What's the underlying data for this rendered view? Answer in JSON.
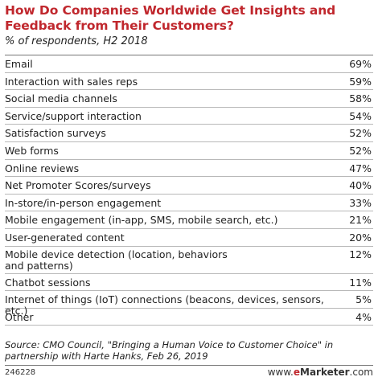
{
  "chart_data": {
    "type": "table",
    "title": "How Do Companies Worldwide Get Insights and Feedback from Their Customers?",
    "subtitle": "% of respondents, H2 2018",
    "rows": [
      {
        "label": "Email",
        "value": "69%"
      },
      {
        "label": "Interaction with sales reps",
        "value": "59%"
      },
      {
        "label": "Social media channels",
        "value": "58%"
      },
      {
        "label": "Service/support interaction",
        "value": "54%"
      },
      {
        "label": "Satisfaction surveys",
        "value": "52%"
      },
      {
        "label": "Web forms",
        "value": "52%"
      },
      {
        "label": "Online reviews",
        "value": "47%"
      },
      {
        "label": "Net Promoter Scores/surveys",
        "value": "40%"
      },
      {
        "label": "In-store/in-person engagement",
        "value": "33%"
      },
      {
        "label": "Mobile engagement (in-app, SMS, mobile search, etc.)",
        "value": "21%"
      },
      {
        "label": "User-generated content",
        "value": "20%"
      },
      {
        "label": "Mobile device detection (location, behaviors and patterns)",
        "value": "12%"
      },
      {
        "label": "Chatbot sessions",
        "value": "11%"
      },
      {
        "label": "Internet of things (IoT) connections (beacons, devices, sensors, etc.)",
        "value": "5%"
      },
      {
        "label": "Other",
        "value": "4%"
      }
    ],
    "values": [
      69,
      59,
      58,
      54,
      52,
      52,
      47,
      40,
      33,
      21,
      20,
      12,
      11,
      5,
      4
    ]
  },
  "source": "Source: CMO Council, \"Bringing a Human Voice to Customer Choice\" in partnership with Harte Hanks, Feb 26, 2019",
  "footer": {
    "chart_id": "246228",
    "brand_e": "e",
    "brand_rest": "Marketer",
    "brand_suffix": ".com",
    "brand_prefix": "www."
  },
  "colors": {
    "title": "#c0272d",
    "text": "#222222",
    "rule": "#b8b8b8"
  }
}
